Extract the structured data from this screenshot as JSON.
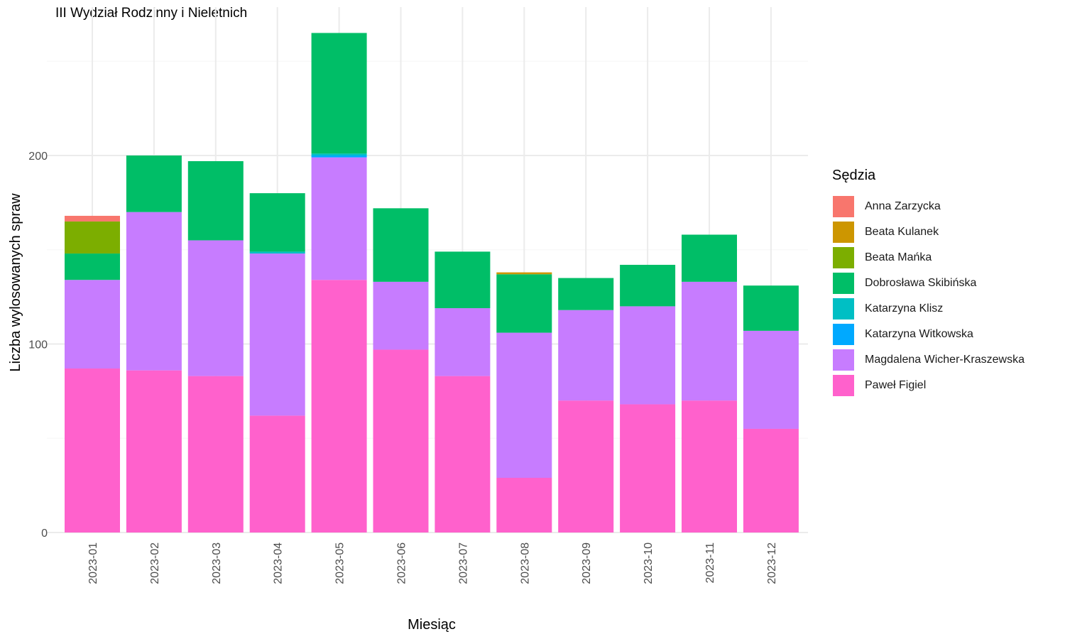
{
  "chart_data": {
    "type": "bar",
    "stacked": true,
    "title": "III Wydział Rodzinny i Nieletnich",
    "xlabel": "Miesiąc",
    "ylabel": "Liczba wylosowanych spraw",
    "ylim": [
      0,
      270
    ],
    "yticks": [
      0,
      100,
      200
    ],
    "grid": true,
    "legend_position": "right",
    "legend_title": "Sędzia",
    "categories": [
      "2023-01",
      "2023-02",
      "2023-03",
      "2023-04",
      "2023-05",
      "2023-06",
      "2023-07",
      "2023-08",
      "2023-09",
      "2023-10",
      "2023-11",
      "2023-12"
    ],
    "series": [
      {
        "name": "Paweł Figiel",
        "color": "#FF61CC",
        "values": [
          87,
          86,
          83,
          62,
          134,
          97,
          83,
          29,
          70,
          68,
          70,
          55
        ]
      },
      {
        "name": "Magdalena Wicher-Kraszewska",
        "color": "#C77CFF",
        "values": [
          47,
          84,
          72,
          86,
          65,
          36,
          36,
          77,
          48,
          52,
          63,
          52
        ]
      },
      {
        "name": "Katarzyna Witkowska",
        "color": "#00A9FF",
        "values": [
          0,
          0,
          0,
          0,
          1,
          0,
          0,
          0,
          0,
          0,
          0,
          0
        ]
      },
      {
        "name": "Katarzyna Klisz",
        "color": "#00BFC4",
        "values": [
          0,
          0,
          0,
          1,
          1,
          0,
          0,
          0,
          0,
          0,
          0,
          0
        ]
      },
      {
        "name": "Dobrosława Skibińska",
        "color": "#00BE67",
        "values": [
          14,
          30,
          42,
          31,
          64,
          39,
          30,
          31,
          17,
          22,
          25,
          24
        ]
      },
      {
        "name": "Beata Mańka",
        "color": "#7CAE00",
        "values": [
          17,
          0,
          0,
          0,
          0,
          0,
          0,
          0,
          0,
          0,
          0,
          0
        ]
      },
      {
        "name": "Beata Kulanek",
        "color": "#CD9600",
        "values": [
          0,
          0,
          0,
          0,
          0,
          0,
          0,
          1,
          0,
          0,
          0,
          0
        ]
      },
      {
        "name": "Anna Zarzycka",
        "color": "#F8766D",
        "values": [
          3,
          0,
          0,
          0,
          0,
          0,
          0,
          0,
          0,
          0,
          0,
          0
        ]
      }
    ],
    "legend_order": [
      "Anna Zarzycka",
      "Beata Kulanek",
      "Beata Mańka",
      "Dobrosława Skibińska",
      "Katarzyna Klisz",
      "Katarzyna Witkowska",
      "Magdalena Wicher-Kraszewska",
      "Paweł Figiel"
    ]
  }
}
